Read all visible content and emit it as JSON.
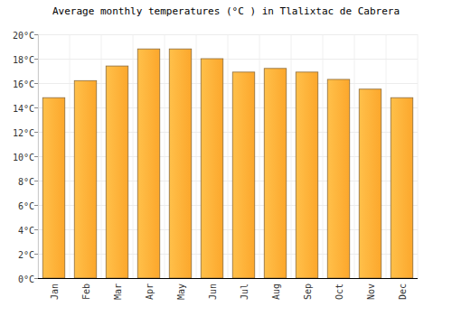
{
  "chart_data": {
    "type": "bar",
    "title": "Average monthly temperatures (°C ) in Tlalixtac de Cabrera",
    "categories": [
      "Jan",
      "Feb",
      "Mar",
      "Apr",
      "May",
      "Jun",
      "Jul",
      "Aug",
      "Sep",
      "Oct",
      "Nov",
      "Dec"
    ],
    "values": [
      14.8,
      16.2,
      17.4,
      18.8,
      18.8,
      18.0,
      16.9,
      17.2,
      16.9,
      16.3,
      15.5,
      14.8
    ],
    "color": "#fca72c",
    "ylim": [
      0,
      20
    ],
    "yticks": [
      {
        "value": 0,
        "label": "0°C"
      },
      {
        "value": 2,
        "label": "2°C"
      },
      {
        "value": 4,
        "label": "4°C"
      },
      {
        "value": 6,
        "label": "6°C"
      },
      {
        "value": 8,
        "label": "8°C"
      },
      {
        "value": 10,
        "label": "10°C"
      },
      {
        "value": 12,
        "label": "12°C"
      },
      {
        "value": 14,
        "label": "14°C"
      },
      {
        "value": 16,
        "label": "16°C"
      },
      {
        "value": 18,
        "label": "18°C"
      },
      {
        "value": 20,
        "label": "20°C"
      }
    ],
    "grid": true
  }
}
